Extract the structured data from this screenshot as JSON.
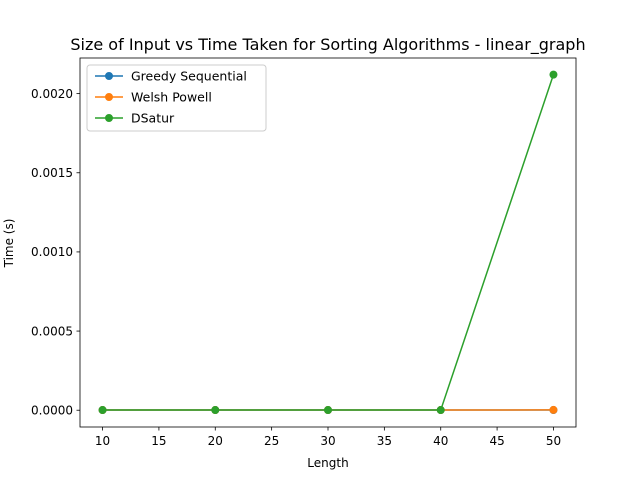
{
  "chart_data": {
    "type": "line",
    "title": "Size of Input vs Time Taken for Sorting Algorithms - linear_graph",
    "xlabel": "Length",
    "ylabel": "Time (s)",
    "x": [
      10,
      20,
      30,
      40,
      50
    ],
    "xlim": [
      8,
      52
    ],
    "ylim": [
      -0.000106,
      0.002225
    ],
    "xticks": [
      10,
      15,
      20,
      25,
      30,
      35,
      40,
      45,
      50
    ],
    "yticks": [
      0.0,
      0.0005,
      0.001,
      0.0015,
      0.002
    ],
    "xtick_labels": [
      "10",
      "15",
      "20",
      "25",
      "30",
      "35",
      "40",
      "45",
      "50"
    ],
    "ytick_labels": [
      "0.0000",
      "0.0005",
      "0.0010",
      "0.0015",
      "0.0020"
    ],
    "grid": false,
    "legend": "top-left",
    "series": [
      {
        "name": "Greedy Sequential",
        "color": "#1f77b4",
        "marker": "circle",
        "values": [
          1e-06,
          1e-06,
          1e-06,
          1e-06,
          1e-06
        ]
      },
      {
        "name": "Welsh Powell",
        "color": "#ff7f0e",
        "marker": "circle",
        "values": [
          1e-06,
          1e-06,
          1e-06,
          1e-06,
          2e-06
        ]
      },
      {
        "name": "DSatur",
        "color": "#2ca02c",
        "marker": "circle",
        "values": [
          1e-06,
          1e-06,
          1e-06,
          1e-06,
          0.00212
        ]
      }
    ]
  }
}
